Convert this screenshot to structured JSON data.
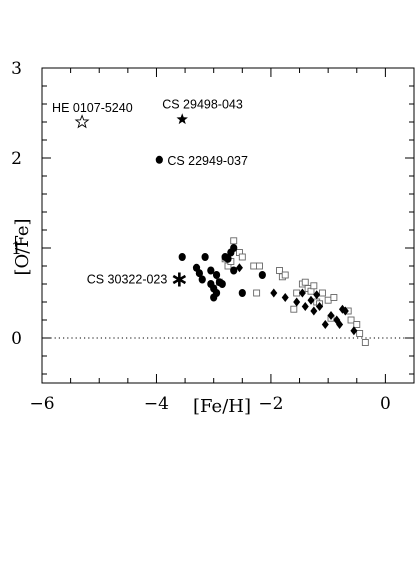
{
  "chart_data": {
    "type": "scatter",
    "xlabel": "[Fe/H]",
    "ylabel": "[O/Fe]",
    "xlim": [
      -6.0,
      0.5
    ],
    "ylim": [
      -0.5,
      3.0
    ],
    "x_ticks": [
      {
        "value": -6,
        "label": "−6"
      },
      {
        "value": -4,
        "label": "−4"
      },
      {
        "value": -2,
        "label": "−2"
      },
      {
        "value": 0,
        "label": "0"
      }
    ],
    "y_ticks": [
      {
        "value": 0,
        "label": "0"
      },
      {
        "value": 1,
        "label": "1"
      },
      {
        "value": 2,
        "label": "2"
      },
      {
        "value": 3,
        "label": "3"
      }
    ],
    "reference_line": {
      "y": 0,
      "style": "dotted"
    },
    "labeled_stars": [
      {
        "name": "HE 0107-5240",
        "x": -5.3,
        "y": 2.4,
        "marker": "open-star"
      },
      {
        "name": "CS 29498-043",
        "x": -3.55,
        "y": 2.43,
        "marker": "filled-star"
      },
      {
        "name": "CS 22949-037",
        "x": -3.95,
        "y": 1.98,
        "marker": "filled-circle"
      },
      {
        "name": "CS 30322-023",
        "x": -3.6,
        "y": 0.65,
        "marker": "asterisk"
      }
    ],
    "series": [
      {
        "marker": "filled-circle",
        "points": [
          [
            -3.55,
            0.9
          ],
          [
            -3.3,
            0.78
          ],
          [
            -3.25,
            0.72
          ],
          [
            -3.2,
            0.65
          ],
          [
            -3.15,
            0.9
          ],
          [
            -3.05,
            0.6
          ],
          [
            -3.05,
            0.75
          ],
          [
            -3.0,
            0.45
          ],
          [
            -3.0,
            0.55
          ],
          [
            -2.95,
            0.7
          ],
          [
            -2.95,
            0.5
          ],
          [
            -2.9,
            0.62
          ],
          [
            -2.85,
            0.6
          ],
          [
            -2.8,
            0.9
          ],
          [
            -2.75,
            0.88
          ],
          [
            -2.7,
            0.95
          ],
          [
            -2.65,
            1.0
          ],
          [
            -2.65,
            0.75
          ],
          [
            -2.5,
            0.5
          ],
          [
            -2.15,
            0.7
          ]
        ]
      },
      {
        "marker": "filled-diamond",
        "points": [
          [
            -2.55,
            0.78
          ],
          [
            -1.95,
            0.5
          ],
          [
            -1.75,
            0.45
          ],
          [
            -1.55,
            0.4
          ],
          [
            -1.45,
            0.5
          ],
          [
            -1.4,
            0.35
          ],
          [
            -1.3,
            0.42
          ],
          [
            -1.25,
            0.3
          ],
          [
            -1.2,
            0.48
          ],
          [
            -1.15,
            0.35
          ],
          [
            -1.05,
            0.15
          ],
          [
            -0.95,
            0.25
          ],
          [
            -0.85,
            0.2
          ],
          [
            -0.8,
            0.15
          ],
          [
            -0.75,
            0.32
          ],
          [
            -0.7,
            0.3
          ],
          [
            -0.55,
            0.08
          ]
        ]
      },
      {
        "marker": "open-square",
        "points": [
          [
            -2.9,
            0.62
          ],
          [
            -2.8,
            0.88
          ],
          [
            -2.75,
            0.8
          ],
          [
            -2.7,
            0.85
          ],
          [
            -2.65,
            1.08
          ],
          [
            -2.55,
            0.95
          ],
          [
            -2.5,
            0.9
          ],
          [
            -2.3,
            0.8
          ],
          [
            -2.25,
            0.5
          ],
          [
            -2.2,
            0.8
          ],
          [
            -1.85,
            0.75
          ],
          [
            -1.8,
            0.68
          ],
          [
            -1.75,
            0.7
          ],
          [
            -1.6,
            0.32
          ],
          [
            -1.55,
            0.5
          ],
          [
            -1.45,
            0.6
          ],
          [
            -1.4,
            0.62
          ],
          [
            -1.35,
            0.55
          ],
          [
            -1.3,
            0.52
          ],
          [
            -1.25,
            0.58
          ],
          [
            -1.2,
            0.4
          ],
          [
            -1.15,
            0.38
          ],
          [
            -1.1,
            0.5
          ],
          [
            -1.0,
            0.42
          ],
          [
            -0.95,
            0.22
          ],
          [
            -0.9,
            0.45
          ],
          [
            -0.65,
            0.3
          ],
          [
            -0.6,
            0.2
          ],
          [
            -0.5,
            0.15
          ],
          [
            -0.45,
            0.05
          ],
          [
            -0.35,
            -0.05
          ]
        ]
      }
    ]
  }
}
